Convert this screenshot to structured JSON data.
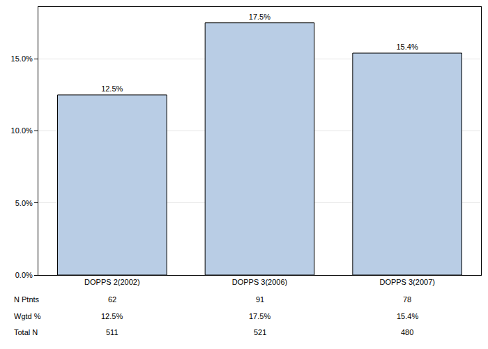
{
  "chart_data": {
    "type": "bar",
    "categories": [
      "DOPPS 2(2002)",
      "DOPPS 3(2006)",
      "DOPPS 3(2007)"
    ],
    "values": [
      12.5,
      17.5,
      15.4
    ],
    "value_labels": [
      "12.5%",
      "17.5%",
      "15.4%"
    ],
    "data_labels": true,
    "color": "#b9cde5",
    "ylim": [
      0,
      18.6
    ],
    "yticks": [
      {
        "value": 0,
        "label": "0.0%"
      },
      {
        "value": 5,
        "label": "5.0%"
      },
      {
        "value": 10,
        "label": "10.0%"
      },
      {
        "value": 15,
        "label": "15.0%"
      }
    ],
    "grid": true,
    "table": {
      "rows": [
        [
          "N Ptnts",
          "62",
          "91",
          "78"
        ],
        [
          "Wgtd %",
          "12.5%",
          "17.5%",
          "15.4%"
        ],
        [
          "Total N",
          "511",
          "521",
          "480"
        ]
      ]
    }
  }
}
